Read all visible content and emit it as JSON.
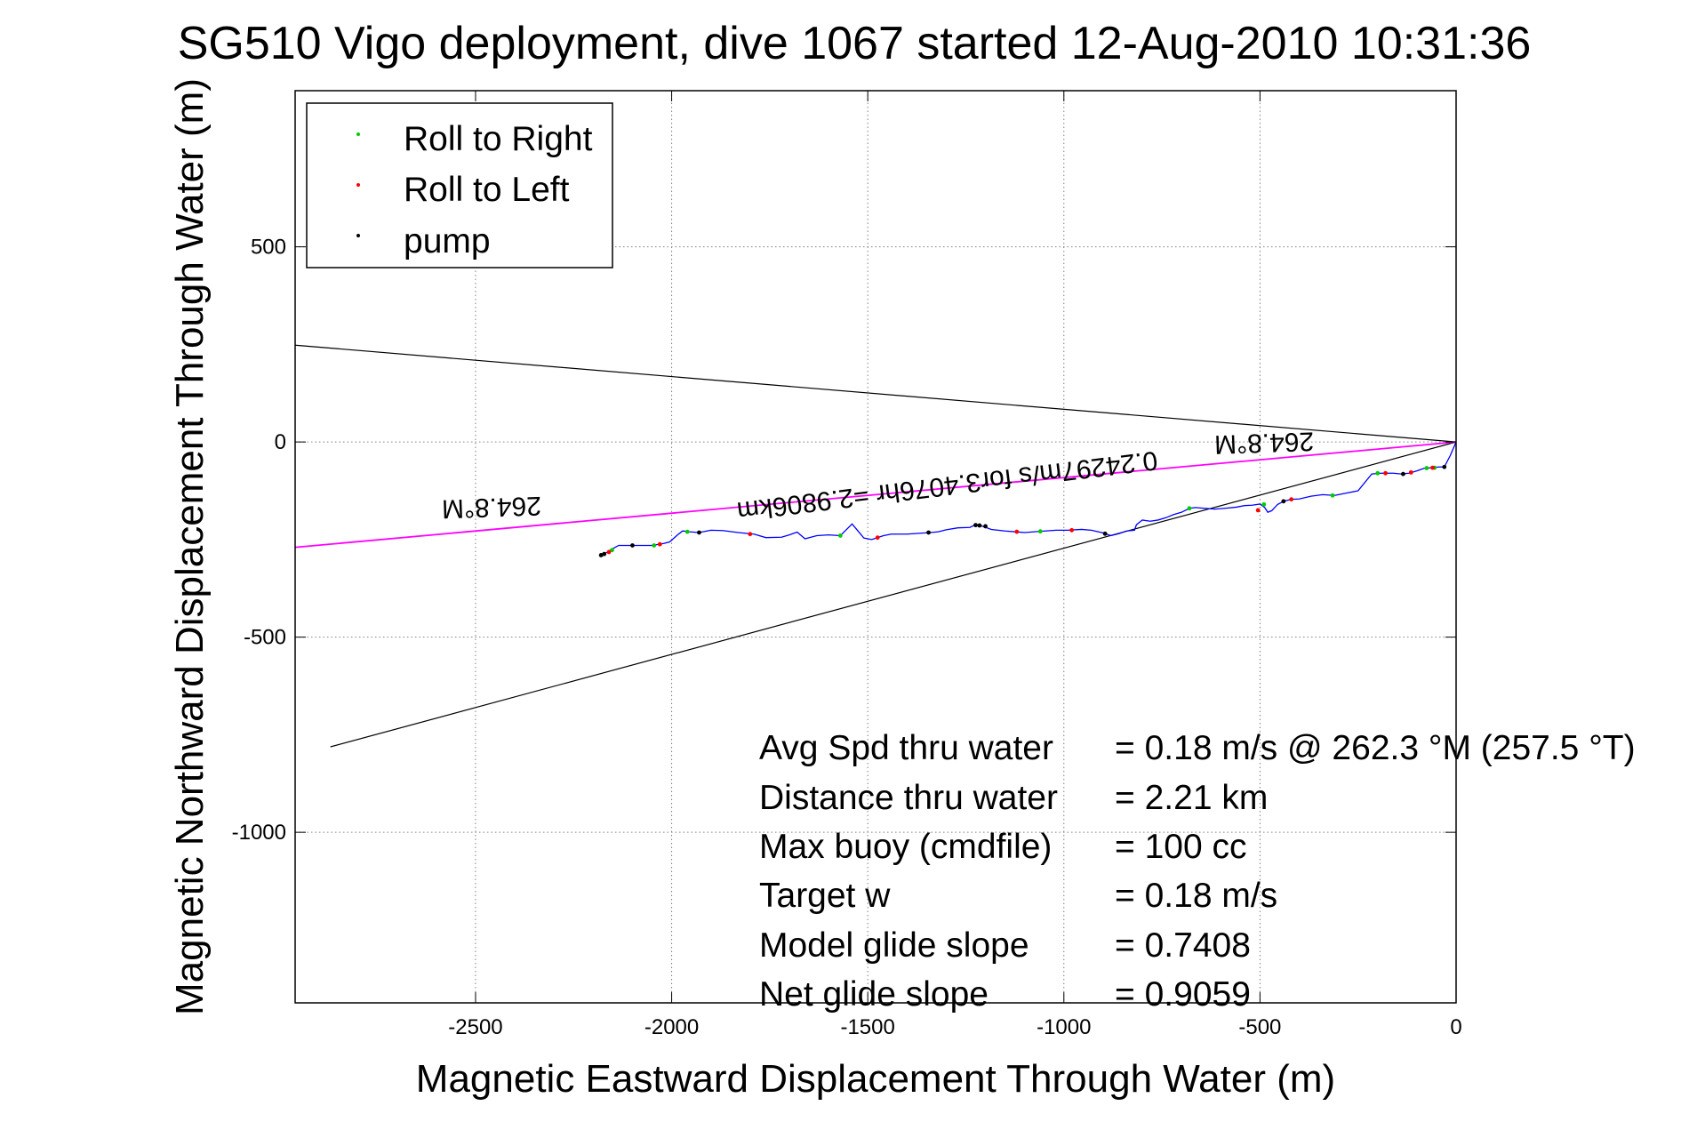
{
  "figure": {
    "title": "SG510 Vigo deployment, dive 1067 started 12-Aug-2010 10:31:36",
    "colors": {
      "background": "#ffffff",
      "axes": "#000000",
      "grid": "#808080",
      "track": "#0000ff",
      "heading": "#ff00ff",
      "bounds": "#000000",
      "roll_right": "#00cc00",
      "roll_left": "#ff0000",
      "pump": "#000000"
    }
  },
  "chart_data": {
    "type": "line",
    "title": "SG510 Vigo deployment, dive 1067 started 12-Aug-2010 10:31:36",
    "xlabel": "Magnetic Eastward Displacement Through Water (m)",
    "ylabel": "Magnetic Northward Displacement Through Water (m)",
    "xlim": [
      -2960,
      0
    ],
    "ylim": [
      -1437,
      900
    ],
    "xticks": [
      -2500,
      -2000,
      -1500,
      -1000,
      -500,
      0
    ],
    "yticks": [
      -1000,
      -500,
      0,
      500
    ],
    "grid": true,
    "legend_position": "top-left",
    "legend": [
      {
        "label": "Roll to Right",
        "color_key": "roll_right"
      },
      {
        "label": "Roll to Left",
        "color_key": "roll_left"
      },
      {
        "label": "pump",
        "color_key": "pump"
      }
    ],
    "lines": [
      {
        "name": "bound-upper",
        "color_key": "bounds",
        "points": [
          [
            -2960,
            248
          ],
          [
            0,
            0
          ]
        ]
      },
      {
        "name": "bound-lower",
        "color_key": "bounds",
        "points": [
          [
            -2870,
            -781
          ],
          [
            0,
            0
          ]
        ]
      },
      {
        "name": "heading",
        "color_key": "heading",
        "points": [
          [
            -2960,
            -270
          ],
          [
            0,
            0
          ]
        ]
      }
    ],
    "track": {
      "color_key": "track",
      "points": [
        [
          -2180,
          -290
        ],
        [
          -2165,
          -283
        ],
        [
          -2148,
          -272
        ],
        [
          -2135,
          -265
        ],
        [
          -2100,
          -265
        ],
        [
          -2050,
          -265
        ],
        [
          -2020,
          -260
        ],
        [
          -2005,
          -256
        ],
        [
          -1985,
          -238
        ],
        [
          -1972,
          -228
        ],
        [
          -1955,
          -230
        ],
        [
          -1930,
          -232
        ],
        [
          -1900,
          -226
        ],
        [
          -1870,
          -227
        ],
        [
          -1830,
          -232
        ],
        [
          -1790,
          -236
        ],
        [
          -1760,
          -245
        ],
        [
          -1720,
          -244
        ],
        [
          -1700,
          -238
        ],
        [
          -1680,
          -231
        ],
        [
          -1660,
          -248
        ],
        [
          -1630,
          -240
        ],
        [
          -1600,
          -238
        ],
        [
          -1570,
          -240
        ],
        [
          -1555,
          -225
        ],
        [
          -1540,
          -210
        ],
        [
          -1525,
          -228
        ],
        [
          -1510,
          -246
        ],
        [
          -1490,
          -250
        ],
        [
          -1460,
          -240
        ],
        [
          -1440,
          -236
        ],
        [
          -1400,
          -236
        ],
        [
          -1370,
          -234
        ],
        [
          -1340,
          -232
        ],
        [
          -1320,
          -230
        ],
        [
          -1300,
          -225
        ],
        [
          -1270,
          -220
        ],
        [
          -1240,
          -219
        ],
        [
          -1225,
          -212
        ],
        [
          -1210,
          -215
        ],
        [
          -1185,
          -224
        ],
        [
          -1150,
          -228
        ],
        [
          -1100,
          -232
        ],
        [
          -1060,
          -229
        ],
        [
          -1020,
          -226
        ],
        [
          -990,
          -226
        ],
        [
          -955,
          -224
        ],
        [
          -930,
          -226
        ],
        [
          -900,
          -233
        ],
        [
          -880,
          -240
        ],
        [
          -860,
          -235
        ],
        [
          -840,
          -228
        ],
        [
          -820,
          -226
        ],
        [
          -815,
          -212
        ],
        [
          -800,
          -200
        ],
        [
          -780,
          -203
        ],
        [
          -760,
          -200
        ],
        [
          -740,
          -194
        ],
        [
          -720,
          -186
        ],
        [
          -700,
          -180
        ],
        [
          -680,
          -170
        ],
        [
          -665,
          -168
        ],
        [
          -640,
          -170
        ],
        [
          -615,
          -172
        ],
        [
          -590,
          -170
        ],
        [
          -560,
          -167
        ],
        [
          -540,
          -163
        ],
        [
          -520,
          -162
        ],
        [
          -500,
          -159
        ],
        [
          -488,
          -168
        ],
        [
          -480,
          -180
        ],
        [
          -470,
          -176
        ],
        [
          -455,
          -160
        ],
        [
          -440,
          -152
        ],
        [
          -420,
          -147
        ],
        [
          -400,
          -146
        ],
        [
          -370,
          -139
        ],
        [
          -340,
          -135
        ],
        [
          -310,
          -137
        ],
        [
          -280,
          -131
        ],
        [
          -250,
          -125
        ],
        [
          -215,
          -82
        ],
        [
          -190,
          -80
        ],
        [
          -160,
          -80
        ],
        [
          -140,
          -82
        ],
        [
          -120,
          -80
        ],
        [
          -100,
          -74
        ],
        [
          -80,
          -67
        ],
        [
          -60,
          -66
        ],
        [
          -45,
          -64
        ],
        [
          -30,
          -64
        ],
        [
          -15,
          -35
        ],
        [
          0,
          0
        ]
      ]
    },
    "markers": {
      "roll_right": [
        [
          -2152,
          -277
        ],
        [
          -2045,
          -265
        ],
        [
          -1960,
          -230
        ],
        [
          -1570,
          -240
        ],
        [
          -1060,
          -229
        ],
        [
          -680,
          -170
        ],
        [
          -490,
          -160
        ],
        [
          -315,
          -137
        ],
        [
          -200,
          -80
        ],
        [
          -75,
          -67
        ],
        [
          -55,
          -66
        ]
      ],
      "roll_left": [
        [
          -2160,
          -282
        ],
        [
          -2030,
          -262
        ],
        [
          -1800,
          -236
        ],
        [
          -1475,
          -245
        ],
        [
          -1120,
          -230
        ],
        [
          -980,
          -226
        ],
        [
          -505,
          -175
        ],
        [
          -420,
          -147
        ],
        [
          -180,
          -80
        ],
        [
          -115,
          -78
        ],
        [
          -60,
          -66
        ]
      ],
      "pump": [
        [
          -2180,
          -290
        ],
        [
          -2172,
          -287
        ],
        [
          -2100,
          -265
        ],
        [
          -1930,
          -232
        ],
        [
          -1345,
          -232
        ],
        [
          -1225,
          -213
        ],
        [
          -1215,
          -214
        ],
        [
          -1200,
          -216
        ],
        [
          -895,
          -235
        ],
        [
          -440,
          -152
        ],
        [
          -135,
          -82
        ],
        [
          -30,
          -64
        ]
      ]
    },
    "annotations": [
      {
        "text": "264.8°M",
        "x": -2460,
        "y": -145,
        "rotation": 178
      },
      {
        "text": "264.8°M",
        "x": -490,
        "y": 20,
        "rotation": 178
      },
      {
        "text": "0.24297m/s for3.4076hr =2.9806km",
        "x": -1300,
        "y": -90,
        "rotation": 173
      }
    ],
    "summary": [
      {
        "label": "Avg Spd thru water",
        "value": "=  0.18 m/s @ 262.3 °M (257.5 °T)"
      },
      {
        "label": "Distance thru water",
        "value": "=  2.21 km"
      },
      {
        "label": "Max buoy (cmdfile)",
        "value": "= 100 cc"
      },
      {
        "label": "Target w",
        "value": "= 0.18 m/s"
      },
      {
        "label": "Model glide slope",
        "value": "= 0.7408"
      },
      {
        "label": "Net glide slope",
        "value": "= 0.9059"
      }
    ]
  }
}
